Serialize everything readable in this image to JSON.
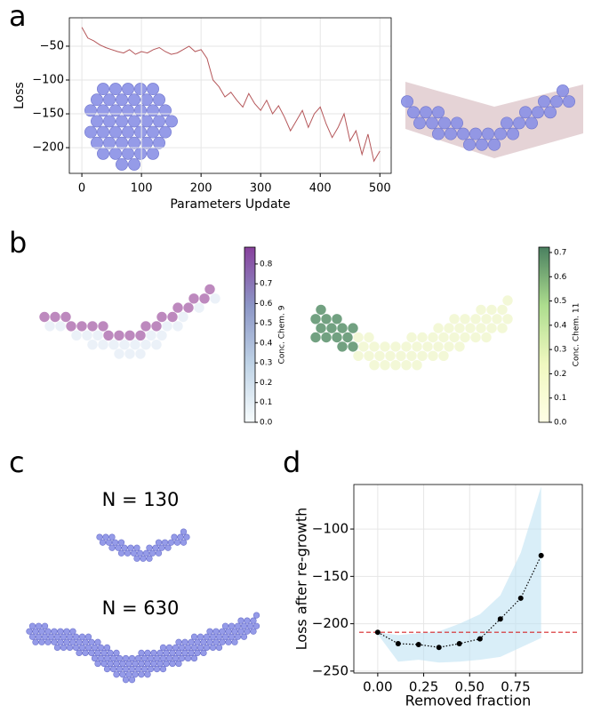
{
  "panel_labels": [
    "a",
    "b",
    "c",
    "d"
  ],
  "annotations": [
    "N = 130",
    "N = 630"
  ],
  "chart_data": [
    {
      "type": "line",
      "xlabel": "Parameters Update",
      "ylabel": "Loss",
      "color": "#b5575a",
      "grid": true,
      "xlim": [
        -21,
        519
      ],
      "ylim": [
        -238,
        -8
      ],
      "xticks": [
        0,
        100,
        200,
        300,
        400,
        500
      ],
      "yticks": [
        {
          "value": -50,
          "label": "−50"
        },
        {
          "value": -100,
          "label": "−100"
        },
        {
          "value": -150,
          "label": "−150"
        },
        {
          "value": -200,
          "label": "−200"
        }
      ],
      "x": [
        0,
        10,
        20,
        30,
        40,
        50,
        60,
        70,
        80,
        90,
        100,
        110,
        120,
        130,
        140,
        150,
        160,
        170,
        180,
        190,
        200,
        210,
        220,
        230,
        240,
        250,
        260,
        270,
        280,
        290,
        300,
        310,
        320,
        330,
        340,
        350,
        360,
        370,
        380,
        390,
        400,
        410,
        420,
        430,
        440,
        450,
        460,
        470,
        480,
        490,
        500
      ],
      "values": [
        -22,
        -38,
        -42,
        -48,
        -52,
        -55,
        -58,
        -60,
        -55,
        -62,
        -58,
        -60,
        -55,
        -52,
        -58,
        -62,
        -60,
        -55,
        -50,
        -58,
        -55,
        -68,
        -100,
        -110,
        -125,
        -118,
        -130,
        -140,
        -120,
        -135,
        -145,
        -130,
        -150,
        -138,
        -155,
        -175,
        -160,
        -145,
        -170,
        -150,
        -140,
        -165,
        -185,
        -170,
        -150,
        -190,
        -175,
        -210,
        -180,
        -220,
        -205
      ]
    },
    {
      "type": "colorbar",
      "label": "Conc. Chem. 9",
      "colors": [
        "#f7fcfd",
        "#bfd3e6",
        "#8c96c6",
        "#88419d"
      ],
      "ylim": [
        0,
        0.885
      ],
      "yticks": [
        {
          "value": 0,
          "label": "0.0"
        },
        0.1,
        0.2,
        0.3,
        0.4,
        0.5,
        0.6,
        0.7,
        0.8
      ]
    },
    {
      "type": "colorbar",
      "label": "Conc. Chem. 11",
      "colors": [
        "#ffffe5",
        "#f0f8c0",
        "#addd8e",
        "#4a8060"
      ],
      "ylim": [
        0,
        0.722
      ],
      "yticks": [
        {
          "value": 0,
          "label": "0.0"
        },
        0.1,
        0.2,
        0.3,
        0.4,
        0.5,
        0.6,
        0.7
      ]
    },
    {
      "type": "line",
      "xlabel": "Removed fraction",
      "ylabel": "Loss after re-growth",
      "color": "#000000",
      "band_color": "#bfe2f3",
      "hline": -209,
      "hline_color": "#d62728",
      "grid": true,
      "xlim": [
        -0.13,
        1.113
      ],
      "ylim": [
        -252,
        -53
      ],
      "xticks": [
        {
          "value": 0,
          "label": "0.00"
        },
        {
          "value": 0.25,
          "label": "0.25"
        },
        {
          "value": 0.5,
          "label": "0.50"
        },
        {
          "value": 0.75,
          "label": "0.75"
        }
      ],
      "yticks": [
        {
          "value": -250,
          "label": "−250"
        },
        {
          "value": -200,
          "label": "−200"
        },
        {
          "value": -150,
          "label": "−150"
        },
        {
          "value": -100,
          "label": "−100"
        }
      ],
      "x": [
        0,
        0.111,
        0.222,
        0.333,
        0.444,
        0.556,
        0.667,
        0.778,
        0.889
      ],
      "values": [
        -209,
        -221,
        -222,
        -225,
        -221,
        -216,
        -195,
        -173,
        -128
      ],
      "lower": [
        -211,
        -240,
        -238,
        -241,
        -240,
        -238,
        -235,
        -225,
        -215
      ],
      "upper": [
        -209,
        -212,
        -210,
        -208,
        -200,
        -190,
        -170,
        -125,
        -55
      ]
    }
  ]
}
